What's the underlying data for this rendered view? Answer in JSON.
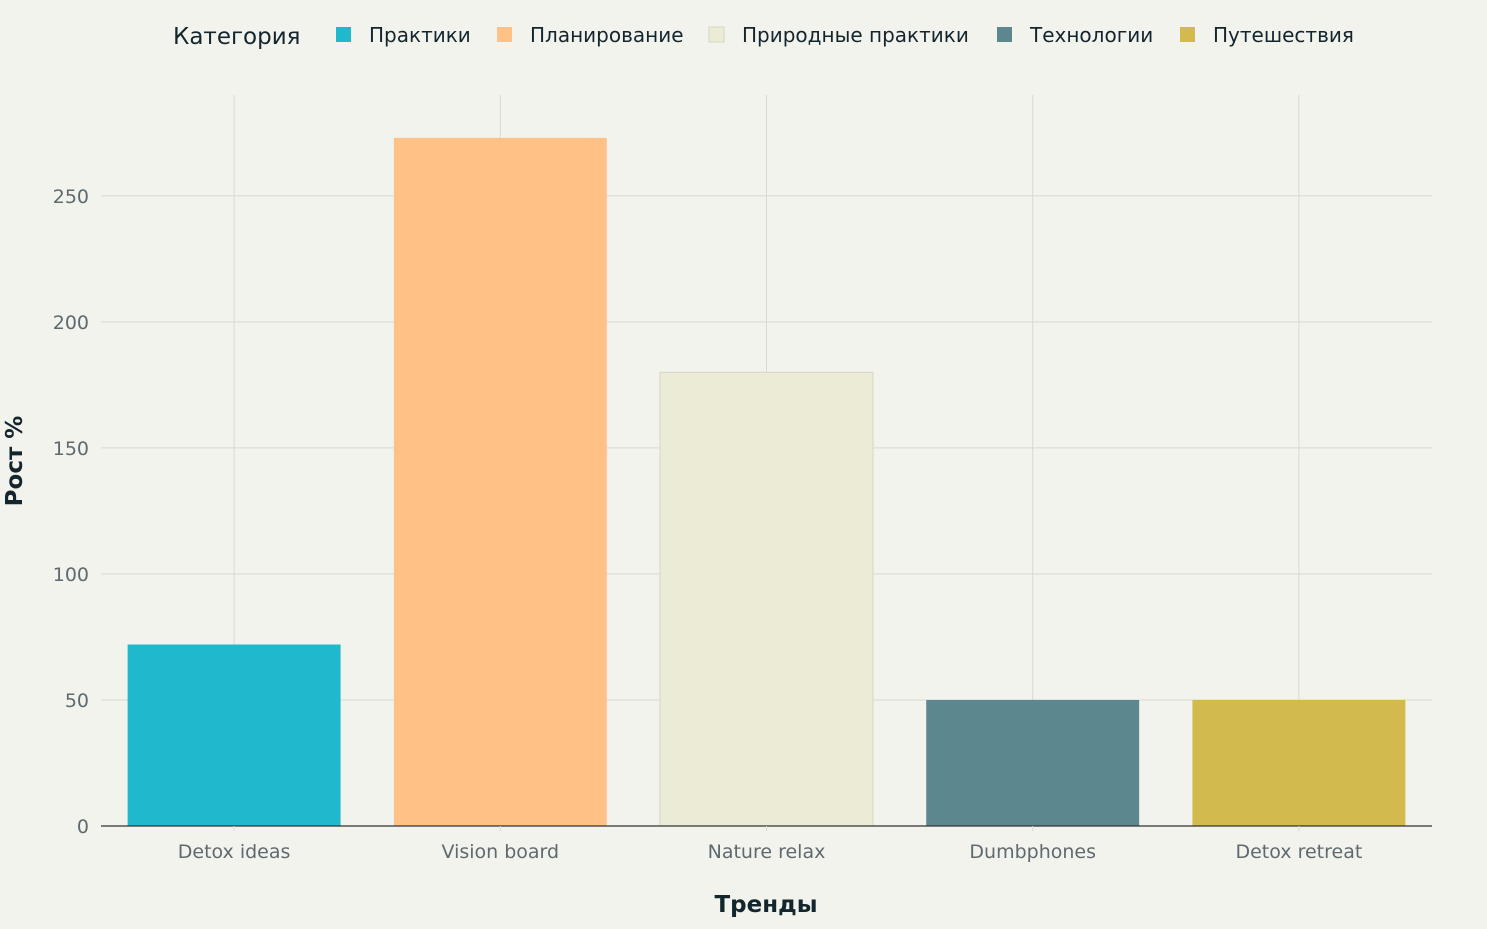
{
  "chart_data": {
    "type": "bar",
    "categories": [
      "Detox ideas",
      "Vision board",
      "Nature relax",
      "Dumbphones",
      "Detox retreat"
    ],
    "values": [
      72,
      273,
      180,
      50,
      50
    ],
    "colors": [
      "#1fb8cd",
      "#ffc185",
      "#eceBd5",
      "#5d878f",
      "#d2ba4c"
    ],
    "xlabel": "Тренды",
    "ylabel": "Рост %",
    "ylim": [
      0,
      290
    ],
    "yticks": [
      0,
      50,
      100,
      150,
      200,
      250
    ],
    "grid": true,
    "legend": {
      "title": "Категория",
      "placement": "top",
      "entries": [
        {
          "label": "Практики",
          "color": "#1fb8cd"
        },
        {
          "label": "Планирование",
          "color": "#ffc185"
        },
        {
          "label": "Природные практики",
          "color": "#eceBd5"
        },
        {
          "label": "Технологии",
          "color": "#5d878f"
        },
        {
          "label": "Путешествия",
          "color": "#d2ba4c"
        }
      ]
    }
  }
}
